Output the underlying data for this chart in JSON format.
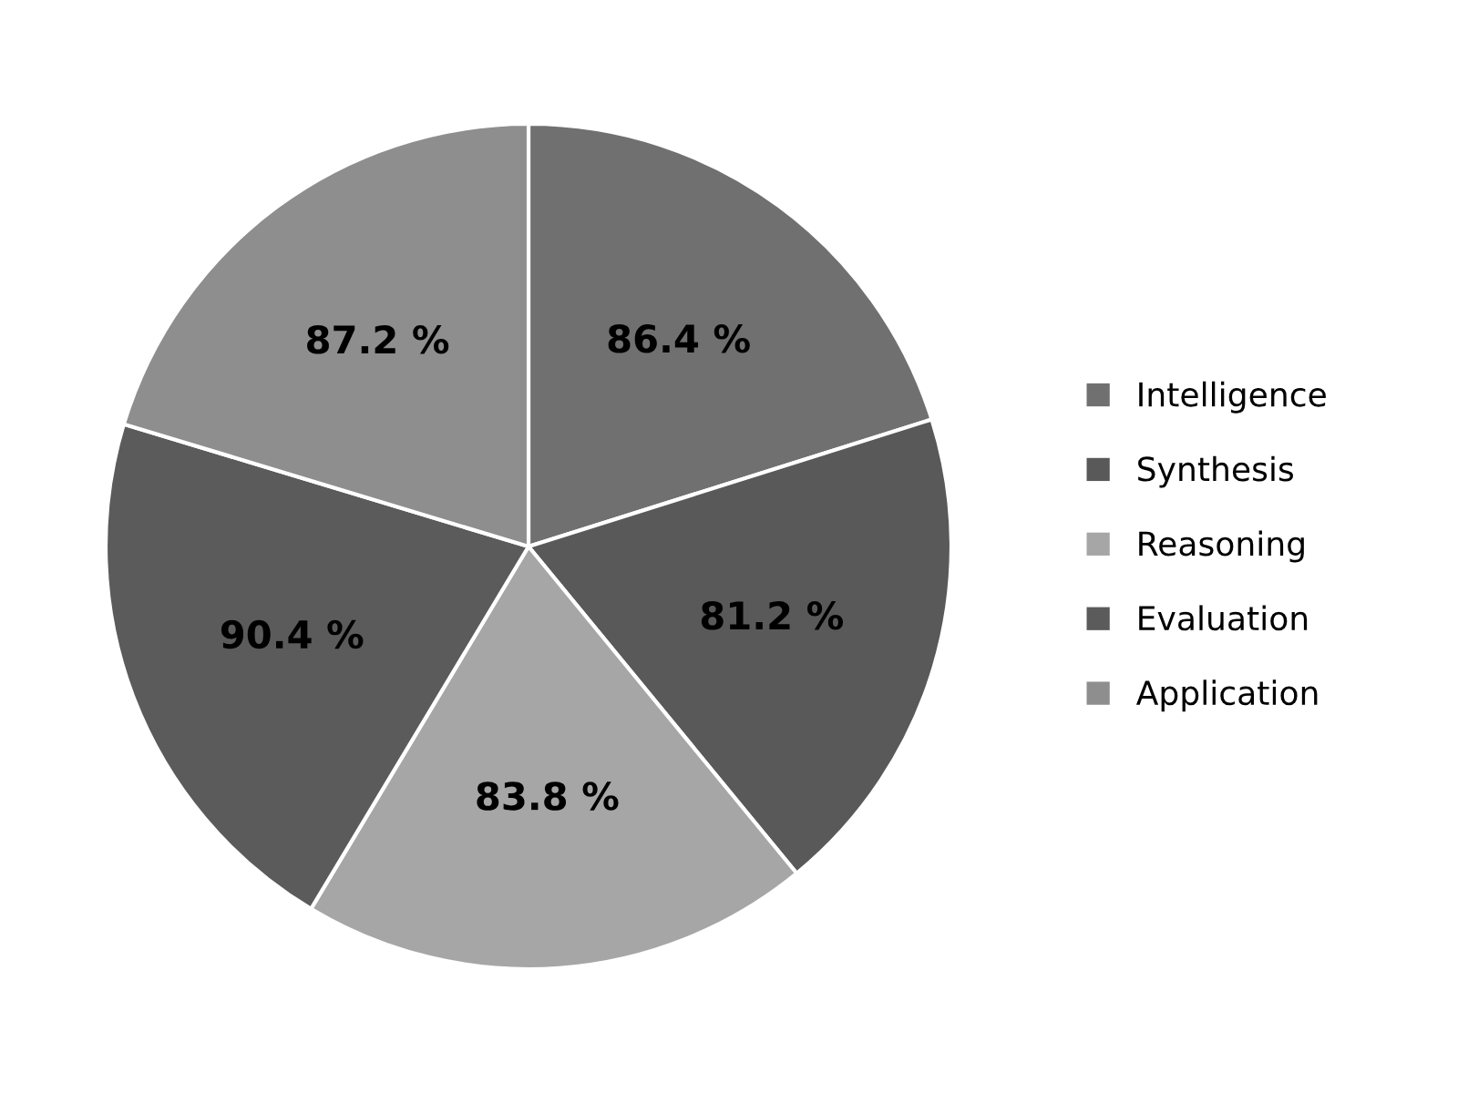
{
  "chart_data": {
    "type": "pie",
    "categories": [
      "Intelligence",
      "Synthesis",
      "Reasoning",
      "Evaluation",
      "Application"
    ],
    "values": [
      86.4,
      81.2,
      83.8,
      90.4,
      87.2
    ],
    "colors": [
      "#707070",
      "#595959",
      "#a6a6a6",
      "#5b5b5b",
      "#8e8e8e"
    ],
    "value_labels": [
      "86.4 %",
      "81.2 %",
      "83.8 %",
      "90.4 %",
      "87.2 %"
    ],
    "legend": "right"
  }
}
